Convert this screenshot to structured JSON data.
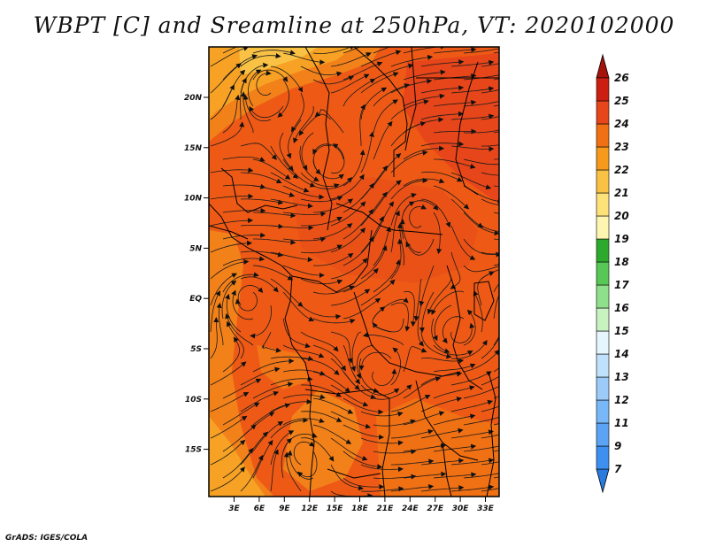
{
  "title": "WBPT [C] and Sreamline at 250hPa, VT: 2020102000",
  "credit": "GrADS: IGES/COLA",
  "map": {
    "lat_labels": [
      "20N",
      "15N",
      "10N",
      "5N",
      "EQ",
      "5S",
      "10S",
      "15S"
    ],
    "lon_labels": [
      "3E",
      "6E",
      "9E",
      "12E",
      "15E",
      "18E",
      "21E",
      "24E",
      "27E",
      "30E",
      "33E"
    ]
  },
  "colorbar": {
    "labels": [
      "7",
      "9",
      "11",
      "12",
      "13",
      "14",
      "15",
      "16",
      "17",
      "18",
      "19",
      "20",
      "21",
      "22",
      "23",
      "24",
      "25",
      "26"
    ],
    "colors": [
      "#2a7be0",
      "#3d8ff0",
      "#5aa3f5",
      "#78b8f8",
      "#9ccbf9",
      "#bfe1fb",
      "#e6f6fe",
      "#c8f2c0",
      "#8fe08a",
      "#57c857",
      "#2daa2d",
      "#fdf5b0",
      "#fde27a",
      "#f9c245",
      "#f59a1a",
      "#f07014",
      "#e6461a",
      "#cc1f12",
      "#a6120c"
    ]
  }
}
